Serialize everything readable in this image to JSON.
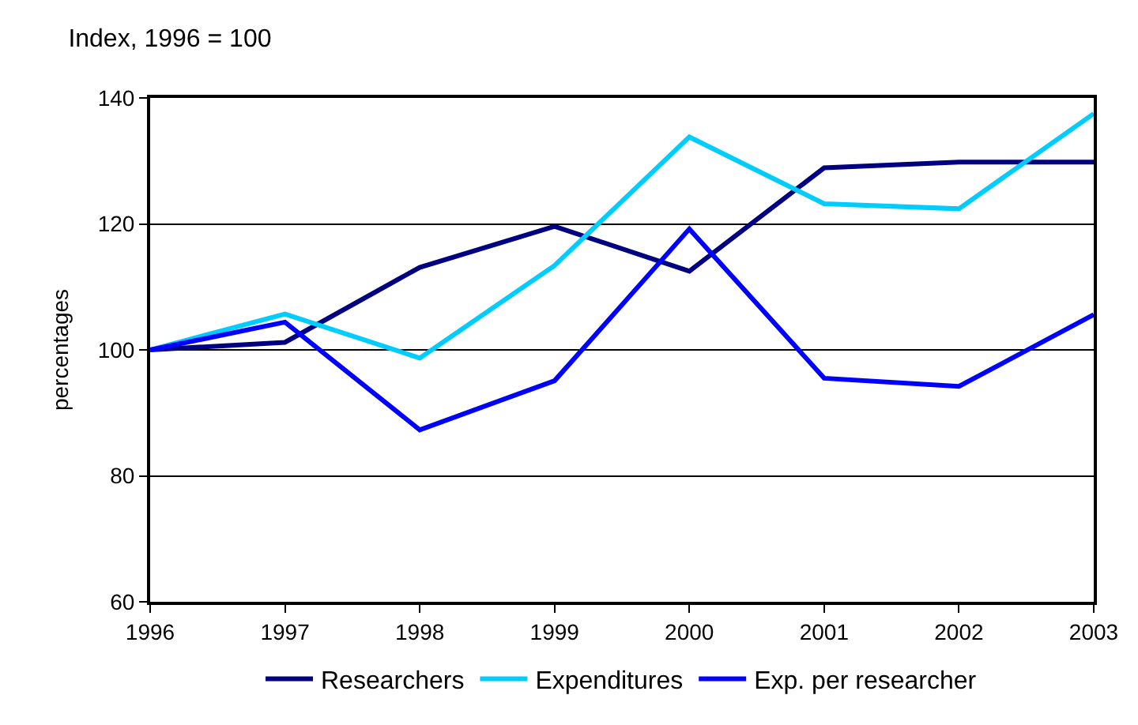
{
  "chart_data": {
    "type": "line",
    "title": "Index, 1996 = 100",
    "ylabel": "percentages",
    "x": [
      1996,
      1997,
      1998,
      1999,
      2000,
      2001,
      2002,
      2003
    ],
    "series": [
      {
        "name": "Researchers",
        "color": "#000080",
        "values": [
          100,
          101.2,
          113.1,
          119.6,
          112.5,
          128.9,
          129.8,
          129.8
        ]
      },
      {
        "name": "Expenditures",
        "color": "#00ccff",
        "values": [
          100,
          105.7,
          98.7,
          113.4,
          133.8,
          123.2,
          122.4,
          137.5
        ]
      },
      {
        "name": "Exp. per researcher",
        "color": "#0000ff",
        "values": [
          100,
          104.4,
          87.3,
          95.1,
          119.2,
          95.5,
          94.2,
          105.6
        ]
      }
    ],
    "xlim": [
      1996,
      2003
    ],
    "xticks": [
      1996,
      1997,
      1998,
      1999,
      2000,
      2001,
      2002,
      2003
    ],
    "ylim": [
      60,
      140
    ],
    "yticks": [
      60,
      80,
      100,
      120,
      140
    ],
    "grid": "y",
    "legend": "bottom",
    "marker": "none",
    "line_style": "solid"
  }
}
